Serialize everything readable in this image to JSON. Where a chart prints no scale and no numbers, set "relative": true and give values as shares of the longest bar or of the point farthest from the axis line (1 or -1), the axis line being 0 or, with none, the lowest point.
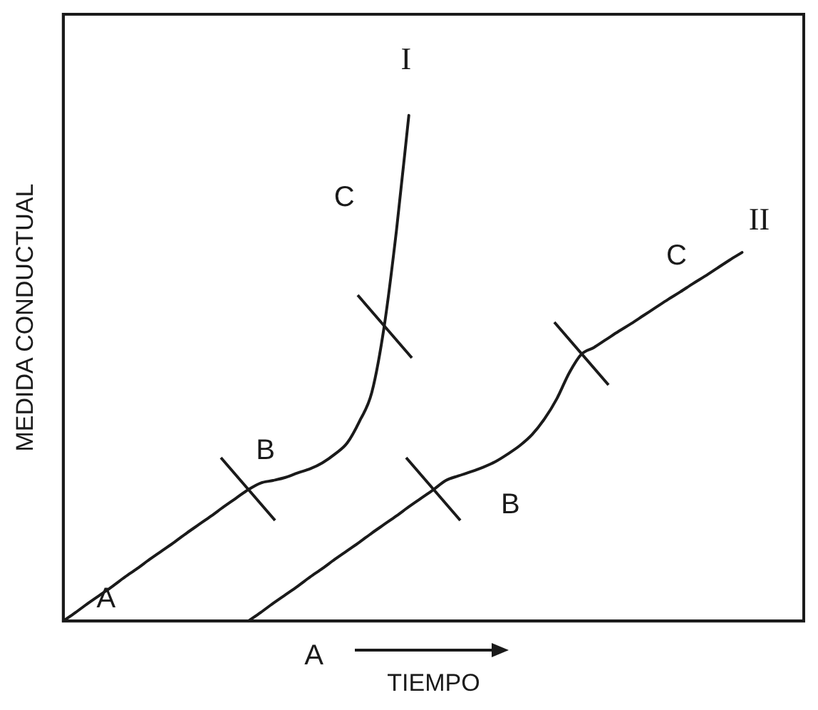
{
  "chart_data": {
    "type": "line",
    "relative": true,
    "xlabel": "TIEMPO",
    "ylabel": "MEDIDA CONDUCTUAL",
    "legend": false,
    "grid": false,
    "marker": "none",
    "line_style": "solid",
    "categories": [
      null,
      null,
      null,
      null,
      null,
      null,
      null,
      null,
      null,
      null,
      null,
      null,
      null,
      null,
      null,
      null,
      null,
      null,
      null,
      null,
      null,
      null,
      null,
      null,
      null,
      null,
      null,
      null,
      null,
      null,
      null,
      null,
      null,
      null,
      null,
      null,
      null,
      null,
      null,
      null,
      null,
      null,
      null,
      null,
      null,
      null,
      null,
      null,
      null,
      null,
      null,
      null,
      null,
      null,
      null,
      null,
      null,
      null,
      null,
      null,
      null
    ],
    "series": [
      {
        "name": "I",
        "color": "#1a1a1a",
        "values": [
          0,
          0.017,
          0.035,
          0.052,
          0.069,
          0.087,
          0.104,
          0.122,
          0.139,
          0.156,
          0.174,
          0.191,
          0.208,
          0.226,
          0.243,
          0.26,
          0.273,
          0.278,
          0.284,
          0.293,
          0.301,
          0.313,
          0.33,
          0.352,
          0.395,
          0.452,
          0.582,
          0.773,
          1.0,
          null,
          null,
          null,
          null,
          null,
          null,
          null,
          null,
          null,
          null,
          null,
          null,
          null,
          null,
          null,
          null,
          null,
          null,
          null,
          null,
          null,
          null,
          null,
          null,
          null,
          null,
          null,
          null,
          null,
          null,
          null,
          null
        ]
      },
      {
        "name": "II",
        "color": "#1a1a1a",
        "values": [
          null,
          null,
          null,
          null,
          null,
          null,
          null,
          null,
          null,
          null,
          null,
          null,
          null,
          null,
          null,
          0,
          0.017,
          0.035,
          0.052,
          0.069,
          0.087,
          0.104,
          0.122,
          0.139,
          0.156,
          0.174,
          0.191,
          0.208,
          0.226,
          0.243,
          0.26,
          0.278,
          0.287,
          0.295,
          0.304,
          0.315,
          0.33,
          0.347,
          0.369,
          0.4,
          0.44,
          0.491,
          0.528,
          0.541,
          0.557,
          0.573,
          0.588,
          0.604,
          0.62,
          0.636,
          0.651,
          0.667,
          0.682,
          0.698,
          0.714,
          0.729,
          null,
          null,
          null,
          null,
          null
        ]
      }
    ],
    "annotations": [
      "A",
      "B",
      "C",
      "A",
      "B",
      "C"
    ]
  }
}
